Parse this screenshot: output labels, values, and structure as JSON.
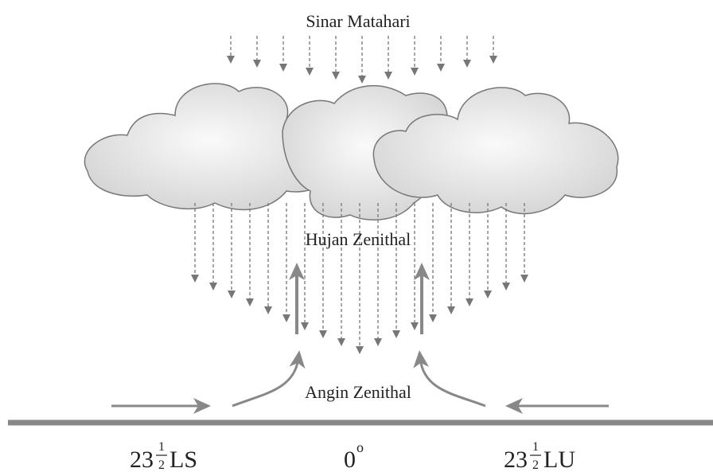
{
  "labels": {
    "sunlight": "Sinar Matahari",
    "rain": "Hujan Zenithal",
    "wind": "Angin Zenithal"
  },
  "latitudes": [
    {
      "whole": "23",
      "num": "1",
      "den": "2",
      "suffix": "LS"
    },
    {
      "whole": "0",
      "sup": "o"
    },
    {
      "whole": "23",
      "num": "1",
      "den": "2",
      "suffix": "LU"
    }
  ]
}
